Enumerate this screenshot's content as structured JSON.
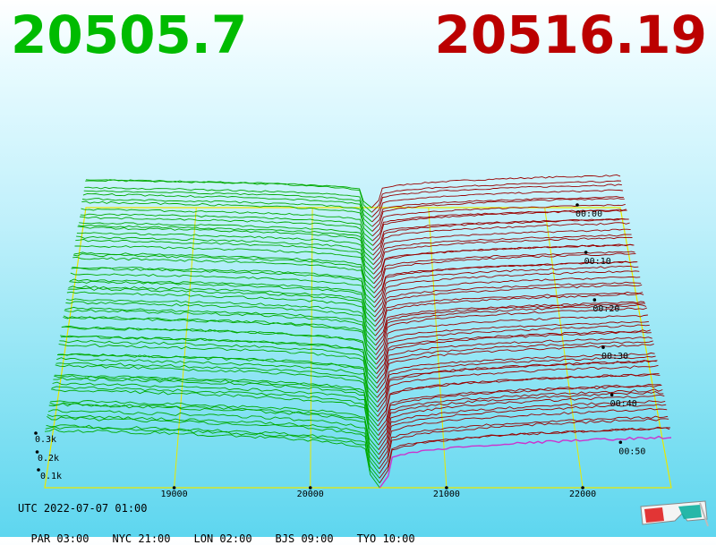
{
  "prices": {
    "bid": "20505.7",
    "ask": "20516.19",
    "bid_color": "#00bb00",
    "ask_color": "#bb0000"
  },
  "chart_data": {
    "type": "area",
    "x_ticks": [
      "19000",
      "20000",
      "21000",
      "22000"
    ],
    "x_tick_values": [
      19000,
      20000,
      21000,
      22000
    ],
    "time_labels": [
      "00:00",
      "00:10",
      "00:20",
      "00:30",
      "00:40",
      "00:50"
    ],
    "depth_labels": [
      "0.1k",
      "0.2k",
      "0.3k"
    ],
    "series": [
      {
        "side": "bid",
        "color": "#00aa00"
      },
      {
        "side": "ask",
        "color": "#990000"
      }
    ],
    "mid_price": 20510,
    "x_range": [
      18050,
      22650
    ],
    "time_range_minutes": [
      0,
      59
    ]
  },
  "footer": {
    "utc": "UTC 2022-07-07 01:00",
    "zones": [
      "PAR 03:00",
      "NYC 21:00",
      "LON 02:00",
      "BJS 09:00",
      "TYO 10:00"
    ]
  },
  "icons": {
    "glasses": "3d-glasses-icon"
  }
}
